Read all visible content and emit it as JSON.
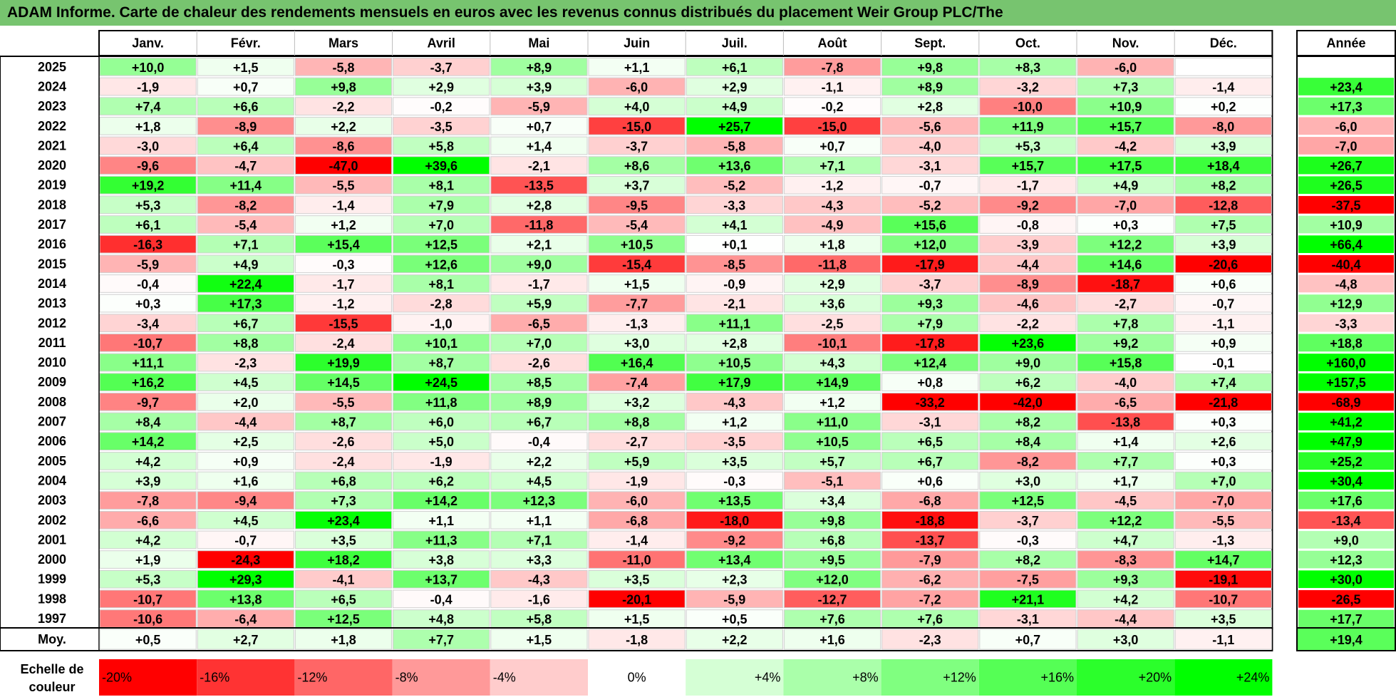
{
  "title": "ADAM Informe. Carte de chaleur des rendements mensuels en euros avec les revenus connus distribués du placement Weir Group PLC/The",
  "colors": {
    "title_bg": "#77c46f",
    "positive_max": "#00ff00",
    "negative_max": "#ff0000",
    "neutral": "#ffffff"
  },
  "chart_data": {
    "type": "heatmap",
    "title": "ADAM Informe. Carte de chaleur des rendements mensuels en euros avec les revenus connus distribués du placement Weir Group PLC/The",
    "columns": [
      "Janv.",
      "Févr.",
      "Mars",
      "Avril",
      "Mai",
      "Juin",
      "Juil.",
      "Août",
      "Sept.",
      "Oct.",
      "Nov.",
      "Déc."
    ],
    "year_column_label": "Année",
    "rows": [
      {
        "label": "2025",
        "values": [
          "+10,0",
          "+1,5",
          "-5,8",
          "-3,7",
          "+8,9",
          "+1,1",
          "+6,1",
          "-7,8",
          "+9,8",
          "+8,3",
          "-6,0",
          ""
        ],
        "year": ""
      },
      {
        "label": "2024",
        "values": [
          "-1,9",
          "+0,7",
          "+9,8",
          "+2,9",
          "+3,9",
          "-6,0",
          "+2,9",
          "-1,1",
          "+8,9",
          "-3,2",
          "+7,3",
          "-1,4"
        ],
        "year": "+23,4"
      },
      {
        "label": "2023",
        "values": [
          "+7,4",
          "+6,6",
          "-2,2",
          "-0,2",
          "-5,9",
          "+4,0",
          "+4,9",
          "-0,2",
          "+2,8",
          "-10,0",
          "+10,9",
          "+0,2"
        ],
        "year": "+17,3"
      },
      {
        "label": "2022",
        "values": [
          "+1,8",
          "-8,9",
          "+2,2",
          "-3,5",
          "+0,7",
          "-15,0",
          "+25,7",
          "-15,0",
          "-5,6",
          "+11,9",
          "+15,7",
          "-8,0"
        ],
        "year": "-6,0"
      },
      {
        "label": "2021",
        "values": [
          "-3,0",
          "+6,4",
          "-8,6",
          "+5,8",
          "+1,4",
          "-3,7",
          "-5,8",
          "+0,7",
          "-4,0",
          "+5,3",
          "-4,2",
          "+3,9"
        ],
        "year": "-7,0"
      },
      {
        "label": "2020",
        "values": [
          "-9,6",
          "-4,7",
          "-47,0",
          "+39,6",
          "-2,1",
          "+8,6",
          "+13,6",
          "+7,1",
          "-3,1",
          "+15,7",
          "+17,5",
          "+18,4"
        ],
        "year": "+26,7"
      },
      {
        "label": "2019",
        "values": [
          "+19,2",
          "+11,4",
          "-5,5",
          "+8,1",
          "-13,5",
          "+3,7",
          "-5,2",
          "-1,2",
          "-0,7",
          "-1,7",
          "+4,9",
          "+8,2"
        ],
        "year": "+26,5"
      },
      {
        "label": "2018",
        "values": [
          "+5,3",
          "-8,2",
          "-1,4",
          "+7,9",
          "+2,8",
          "-9,5",
          "-3,3",
          "-4,3",
          "-5,2",
          "-9,2",
          "-7,0",
          "-12,8"
        ],
        "year": "-37,5"
      },
      {
        "label": "2017",
        "values": [
          "+6,1",
          "-5,4",
          "+1,2",
          "+7,0",
          "-11,8",
          "-5,4",
          "+4,1",
          "-4,9",
          "+15,6",
          "-0,8",
          "+0,3",
          "+7,5"
        ],
        "year": "+10,9"
      },
      {
        "label": "2016",
        "values": [
          "-16,3",
          "+7,1",
          "+15,4",
          "+12,5",
          "+2,1",
          "+10,5",
          "+0,1",
          "+1,8",
          "+12,0",
          "-3,9",
          "+12,2",
          "+3,9"
        ],
        "year": "+66,4"
      },
      {
        "label": "2015",
        "values": [
          "-5,9",
          "+4,9",
          "-0,3",
          "+12,6",
          "+9,0",
          "-15,4",
          "-8,5",
          "-11,8",
          "-17,9",
          "-4,4",
          "+14,6",
          "-20,6"
        ],
        "year": "-40,4"
      },
      {
        "label": "2014",
        "values": [
          "-0,4",
          "+22,4",
          "-1,7",
          "+8,1",
          "-1,7",
          "+1,5",
          "-0,9",
          "+2,9",
          "-3,7",
          "-8,9",
          "-18,7",
          "+0,6"
        ],
        "year": "-4,8"
      },
      {
        "label": "2013",
        "values": [
          "+0,3",
          "+17,3",
          "-1,2",
          "-2,8",
          "+5,9",
          "-7,7",
          "-2,1",
          "+3,6",
          "+9,3",
          "-4,6",
          "-2,7",
          "-0,7"
        ],
        "year": "+12,9"
      },
      {
        "label": "2012",
        "values": [
          "-3,4",
          "+6,7",
          "-15,5",
          "-1,0",
          "-6,5",
          "-1,3",
          "+11,1",
          "-2,5",
          "+7,9",
          "-2,2",
          "+7,8",
          "-1,1"
        ],
        "year": "-3,3"
      },
      {
        "label": "2011",
        "values": [
          "-10,7",
          "+8,8",
          "-2,4",
          "+10,1",
          "+7,0",
          "+3,0",
          "+2,8",
          "-10,1",
          "-17,8",
          "+23,6",
          "+9,2",
          "+0,9"
        ],
        "year": "+18,8"
      },
      {
        "label": "2010",
        "values": [
          "+11,1",
          "-2,3",
          "+19,9",
          "+8,7",
          "-2,6",
          "+16,4",
          "+10,5",
          "+4,3",
          "+12,4",
          "+9,0",
          "+15,8",
          "-0,1"
        ],
        "year": "+160,0"
      },
      {
        "label": "2009",
        "values": [
          "+16,2",
          "+4,5",
          "+14,5",
          "+24,5",
          "+8,5",
          "-7,4",
          "+17,9",
          "+14,9",
          "+0,8",
          "+6,2",
          "-4,0",
          "+7,4"
        ],
        "year": "+157,5"
      },
      {
        "label": "2008",
        "values": [
          "-9,7",
          "+2,0",
          "-5,5",
          "+11,8",
          "+8,9",
          "+3,2",
          "-4,3",
          "+1,2",
          "-33,2",
          "-42,0",
          "-6,5",
          "-21,8"
        ],
        "year": "-68,9"
      },
      {
        "label": "2007",
        "values": [
          "+8,4",
          "-4,4",
          "+8,7",
          "+6,0",
          "+6,7",
          "+8,8",
          "+1,2",
          "+11,0",
          "-3,1",
          "+8,2",
          "-13,8",
          "+0,3"
        ],
        "year": "+41,2"
      },
      {
        "label": "2006",
        "values": [
          "+14,2",
          "+2,5",
          "-2,6",
          "+5,0",
          "-0,4",
          "-2,7",
          "-3,5",
          "+10,5",
          "+6,5",
          "+8,4",
          "+1,4",
          "+2,6"
        ],
        "year": "+47,9"
      },
      {
        "label": "2005",
        "values": [
          "+4,2",
          "+0,9",
          "-2,4",
          "-1,9",
          "+2,2",
          "+5,9",
          "+3,5",
          "+5,7",
          "+6,7",
          "-8,2",
          "+7,7",
          "+0,3"
        ],
        "year": "+25,2"
      },
      {
        "label": "2004",
        "values": [
          "+3,9",
          "+1,6",
          "+6,8",
          "+6,2",
          "+4,5",
          "-1,9",
          "-0,3",
          "-5,1",
          "+0,6",
          "+3,0",
          "+1,7",
          "+7,0"
        ],
        "year": "+30,4"
      },
      {
        "label": "2003",
        "values": [
          "-7,8",
          "-9,4",
          "+7,3",
          "+14,2",
          "+12,3",
          "-6,0",
          "+13,5",
          "+3,4",
          "-6,8",
          "+12,5",
          "-4,5",
          "-7,0"
        ],
        "year": "+17,6"
      },
      {
        "label": "2002",
        "values": [
          "-6,6",
          "+4,5",
          "+23,4",
          "+1,1",
          "+1,1",
          "-6,8",
          "-18,0",
          "+9,8",
          "-18,8",
          "-3,7",
          "+12,2",
          "-5,5"
        ],
        "year": "-13,4"
      },
      {
        "label": "2001",
        "values": [
          "+4,2",
          "-0,7",
          "+3,5",
          "+11,3",
          "+7,1",
          "-1,4",
          "-9,2",
          "+6,8",
          "-13,7",
          "-0,3",
          "+4,7",
          "-1,3"
        ],
        "year": "+9,0"
      },
      {
        "label": "2000",
        "values": [
          "+1,9",
          "-24,3",
          "+18,2",
          "+3,8",
          "+3,3",
          "-11,0",
          "+13,4",
          "+9,5",
          "-7,9",
          "+8,2",
          "-8,3",
          "+14,7"
        ],
        "year": "+12,3"
      },
      {
        "label": "1999",
        "values": [
          "+5,3",
          "+29,3",
          "-4,1",
          "+13,7",
          "-4,3",
          "+3,5",
          "+2,3",
          "+12,0",
          "-6,2",
          "-7,5",
          "+9,3",
          "-19,1"
        ],
        "year": "+30,0"
      },
      {
        "label": "1998",
        "values": [
          "-10,7",
          "+13,8",
          "+6,5",
          "-0,4",
          "-1,6",
          "-20,1",
          "-5,9",
          "-12,7",
          "-7,2",
          "+21,1",
          "+4,2",
          "-10,7"
        ],
        "year": "-26,5"
      },
      {
        "label": "1997",
        "values": [
          "-10,6",
          "-6,4",
          "+12,5",
          "+4,8",
          "+5,8",
          "+1,5",
          "+0,5",
          "+7,6",
          "+7,6",
          "-3,1",
          "-4,4",
          "+3,5"
        ],
        "year": "+17,7"
      }
    ],
    "average_row": {
      "label": "Moy.",
      "values": [
        "+0,5",
        "+2,7",
        "+1,8",
        "+7,7",
        "+1,5",
        "-1,8",
        "+2,2",
        "+1,6",
        "-2,3",
        "+0,7",
        "+3,0",
        "-1,1"
      ],
      "year": "+19,4"
    },
    "scale": {
      "label_line1": "Echelle de",
      "label_line2": "couleur",
      "steps": [
        {
          "label": "-20%",
          "value": -20
        },
        {
          "label": "-16%",
          "value": -16
        },
        {
          "label": "-12%",
          "value": -12
        },
        {
          "label": "-8%",
          "value": -8
        },
        {
          "label": "-4%",
          "value": -4
        },
        {
          "label": "0%",
          "value": 0
        },
        {
          "label": "+4%",
          "value": 4
        },
        {
          "label": "+8%",
          "value": 8
        },
        {
          "label": "+12%",
          "value": 12
        },
        {
          "label": "+16%",
          "value": 16
        },
        {
          "label": "+20%",
          "value": 20
        },
        {
          "label": "+24%",
          "value": 24
        }
      ]
    }
  }
}
